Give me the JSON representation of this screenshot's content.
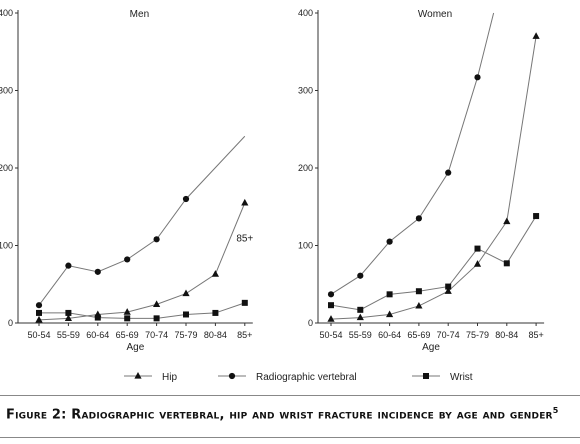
{
  "chart_data": [
    {
      "type": "line",
      "title": "Men",
      "xlabel": "Age",
      "ylabel": "",
      "categories": [
        "50-54",
        "55-59",
        "60-64",
        "65-69",
        "70-74",
        "75-79",
        "80-84",
        "85+"
      ],
      "ylim": [
        0,
        400
      ],
      "yticks": [
        0,
        100,
        200,
        300,
        400
      ],
      "grid": false,
      "series": [
        {
          "name": "Hip",
          "marker": "triangle",
          "values": [
            4,
            6,
            11,
            14,
            24,
            38,
            63,
            155
          ]
        },
        {
          "name": "Radiographic vertebral",
          "marker": "circle",
          "values": [
            23,
            74,
            66,
            82,
            108,
            160,
            null,
            null
          ],
          "extension_to": [
            7.0,
            241
          ]
        },
        {
          "name": "Wrist",
          "marker": "square",
          "values": [
            13,
            13,
            7,
            6,
            6,
            11,
            13,
            26
          ]
        }
      ],
      "annotations": [
        {
          "text": "85+",
          "category": "85+",
          "y": 109
        }
      ]
    },
    {
      "type": "line",
      "title": "Women",
      "xlabel": "Age",
      "ylabel": "",
      "categories": [
        "50-54",
        "55-59",
        "60-64",
        "65-69",
        "70-74",
        "75-79",
        "80-84",
        "85+"
      ],
      "ylim": [
        0,
        400
      ],
      "yticks": [
        0,
        100,
        200,
        300,
        400
      ],
      "grid": false,
      "series": [
        {
          "name": "Hip",
          "marker": "triangle",
          "values": [
            5,
            7,
            11,
            22,
            41,
            76,
            131,
            370
          ]
        },
        {
          "name": "Radiographic vertebral",
          "marker": "circle",
          "values": [
            37,
            61,
            105,
            135,
            194,
            317,
            null,
            null
          ],
          "extension_to": [
            5.55,
            400
          ]
        },
        {
          "name": "Wrist",
          "marker": "square",
          "values": [
            23,
            17,
            37,
            41,
            47,
            96,
            77,
            138
          ]
        }
      ],
      "annotations": []
    }
  ],
  "legend": {
    "placement": "bottom",
    "entries": [
      {
        "label": "Hip",
        "marker": "triangle"
      },
      {
        "label": "Radiographic vertebral",
        "marker": "circle"
      },
      {
        "label": "Wrist",
        "marker": "square"
      }
    ]
  },
  "caption": {
    "text": "Figure 2: Radiographic vertebral, hip and wrist fracture incidence by age and gender",
    "superscript": "5"
  },
  "colors": {
    "line": "#777777",
    "marker": "#111111",
    "axis": "#333333"
  }
}
